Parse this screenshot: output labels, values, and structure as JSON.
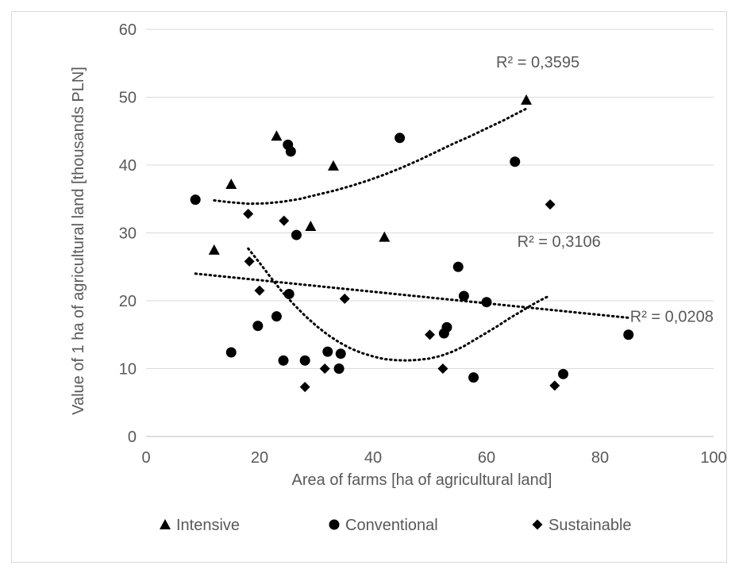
{
  "chart_data": {
    "type": "scatter",
    "xlabel": "Area of farms [ha of agricultural land]",
    "ylabel": "Value of 1 ha of agricultural land [thousands PLN]",
    "xlim": [
      0,
      100
    ],
    "ylim": [
      0,
      60
    ],
    "x_ticks": [
      "0",
      "20",
      "40",
      "60",
      "80",
      "100"
    ],
    "y_ticks": [
      "0",
      "10",
      "20",
      "30",
      "40",
      "50",
      "60"
    ],
    "grid": {
      "horizontal": true,
      "vertical": false,
      "color": "#d9d9d9"
    },
    "legend_position": "bottom",
    "series": [
      {
        "name": "Intensive",
        "marker": "triangle",
        "color": "#000000",
        "points": [
          [
            12,
            27.5
          ],
          [
            15,
            37.2
          ],
          [
            23,
            44.3
          ],
          [
            29,
            31
          ],
          [
            33,
            39.9
          ],
          [
            42,
            29.4
          ],
          [
            67,
            49.6
          ]
        ]
      },
      {
        "name": "Conventional",
        "marker": "circle",
        "color": "#000000",
        "points": [
          [
            8.7,
            34.9
          ],
          [
            15,
            12.4
          ],
          [
            19.7,
            16.3
          ],
          [
            23,
            17.7
          ],
          [
            24.2,
            11.2
          ],
          [
            25,
            43
          ],
          [
            25.2,
            21
          ],
          [
            25.5,
            42
          ],
          [
            26.5,
            29.7
          ],
          [
            28,
            11.2
          ],
          [
            32,
            12.5
          ],
          [
            34,
            10
          ],
          [
            34.3,
            12.2
          ],
          [
            44.7,
            44
          ],
          [
            52.5,
            15.2
          ],
          [
            53,
            16.1
          ],
          [
            55,
            25
          ],
          [
            56,
            20.7
          ],
          [
            57.7,
            8.7
          ],
          [
            60,
            19.8
          ],
          [
            65,
            40.5
          ],
          [
            73.5,
            9.2
          ],
          [
            85,
            15
          ]
        ]
      },
      {
        "name": "Sustainable",
        "marker": "diamond",
        "color": "#000000",
        "points": [
          [
            18,
            32.8
          ],
          [
            18.2,
            25.8
          ],
          [
            20,
            21.5
          ],
          [
            24.3,
            31.8
          ],
          [
            28,
            7.3
          ],
          [
            31.5,
            10
          ],
          [
            35,
            20.3
          ],
          [
            50,
            15
          ],
          [
            52.3,
            10
          ],
          [
            71.2,
            34.2
          ],
          [
            72,
            7.5
          ]
        ]
      }
    ],
    "trendlines": [
      {
        "series": "Intensive",
        "kind": "polynomial",
        "x_range": [
          12,
          67
        ],
        "points": [
          [
            12,
            34.8
          ],
          [
            15,
            34.5
          ],
          [
            18,
            34.3
          ],
          [
            21,
            34.35
          ],
          [
            24,
            34.6
          ],
          [
            27,
            35.0
          ],
          [
            30,
            35.6
          ],
          [
            33,
            36.2
          ],
          [
            36,
            36.9
          ],
          [
            39,
            37.7
          ],
          [
            42,
            38.6
          ],
          [
            45,
            39.6
          ],
          [
            48,
            40.7
          ],
          [
            51,
            41.9
          ],
          [
            54,
            43.1
          ],
          [
            57,
            44.2
          ],
          [
            60,
            45.4
          ],
          [
            63,
            46.6
          ],
          [
            66,
            47.9
          ],
          [
            67,
            48.3
          ]
        ],
        "label": "R² = 0,3595"
      },
      {
        "series": "Sustainable",
        "kind": "polynomial",
        "x_range": [
          18,
          71
        ],
        "points": [
          [
            18,
            27.7
          ],
          [
            20,
            25.6
          ],
          [
            22,
            23.4
          ],
          [
            24,
            21.3
          ],
          [
            26,
            19.5
          ],
          [
            28,
            17.8
          ],
          [
            30,
            16.3
          ],
          [
            32,
            15.0
          ],
          [
            34,
            13.9
          ],
          [
            36,
            13.0
          ],
          [
            38,
            12.3
          ],
          [
            40,
            11.8
          ],
          [
            42,
            11.4
          ],
          [
            44,
            11.25
          ],
          [
            46,
            11.2
          ],
          [
            48,
            11.3
          ],
          [
            50,
            11.5
          ],
          [
            52,
            11.9
          ],
          [
            54,
            12.5
          ],
          [
            56,
            13.3
          ],
          [
            58,
            14.3
          ],
          [
            60,
            15.3
          ],
          [
            62,
            16.3
          ],
          [
            64,
            17.4
          ],
          [
            66,
            18.4
          ],
          [
            68,
            19.4
          ],
          [
            70,
            20.3
          ],
          [
            71,
            20.7
          ]
        ],
        "label": "R² = 0,3106"
      },
      {
        "series": "Conventional",
        "kind": "linear",
        "x_range": [
          8.7,
          85
        ],
        "points": [
          [
            8.7,
            24.0
          ],
          [
            85,
            17.5
          ]
        ],
        "label": "R² = 0,0208"
      }
    ]
  }
}
